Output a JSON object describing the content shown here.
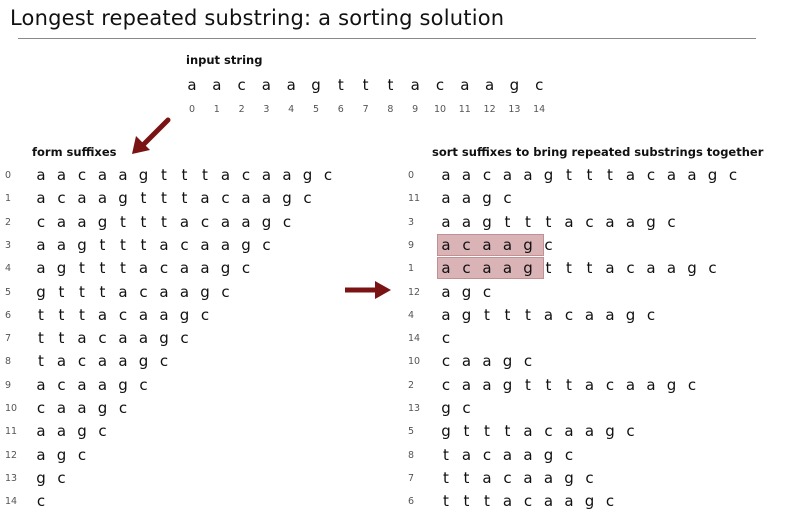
{
  "title": "Longest repeated substring:  a sorting solution",
  "input": {
    "label": "input string",
    "chars": [
      "a",
      "a",
      "c",
      "a",
      "a",
      "g",
      "t",
      "t",
      "t",
      "a",
      "c",
      "a",
      "a",
      "g",
      "c"
    ],
    "indices": [
      "0",
      "1",
      "2",
      "3",
      "4",
      "5",
      "6",
      "7",
      "8",
      "9",
      "10",
      "11",
      "12",
      "13",
      "14"
    ]
  },
  "left": {
    "label": "form suffixes",
    "rows": [
      {
        "n": "0",
        "s": "aacaagtttacaagc"
      },
      {
        "n": "1",
        "s": "acaagtttacaagc"
      },
      {
        "n": "2",
        "s": "caagtttacaagc"
      },
      {
        "n": "3",
        "s": "aagtttacaagc"
      },
      {
        "n": "4",
        "s": "agtttacaagc"
      },
      {
        "n": "5",
        "s": "gtttacaagc"
      },
      {
        "n": "6",
        "s": "tttacaagc"
      },
      {
        "n": "7",
        "s": "ttacaagc"
      },
      {
        "n": "8",
        "s": "tacaagc"
      },
      {
        "n": "9",
        "s": "acaagc"
      },
      {
        "n": "10",
        "s": "caagc"
      },
      {
        "n": "11",
        "s": "aagc"
      },
      {
        "n": "12",
        "s": "agc"
      },
      {
        "n": "13",
        "s": "gc"
      },
      {
        "n": "14",
        "s": "c"
      }
    ]
  },
  "right": {
    "label": "sort suffixes to bring repeated substrings together",
    "rows": [
      {
        "n": "0",
        "s": "aacaagtttacaagc"
      },
      {
        "n": "11",
        "s": "aagc"
      },
      {
        "n": "3",
        "s": "aagtttacaagc"
      },
      {
        "n": "9",
        "s": "acaagc",
        "highlight": 5
      },
      {
        "n": "1",
        "s": "acaagtttacaagc",
        "highlight": 5
      },
      {
        "n": "12",
        "s": "agc"
      },
      {
        "n": "4",
        "s": "agtttacaagc"
      },
      {
        "n": "14",
        "s": "c"
      },
      {
        "n": "10",
        "s": "caagc"
      },
      {
        "n": "2",
        "s": "caagtttacaagc"
      },
      {
        "n": "13",
        "s": "gc"
      },
      {
        "n": "5",
        "s": "gtttacaagc"
      },
      {
        "n": "8",
        "s": "tacaagc"
      },
      {
        "n": "7",
        "s": "ttacaagc"
      },
      {
        "n": "6",
        "s": "tttacaagc"
      }
    ]
  },
  "colors": {
    "arrow": "#7a1414",
    "highlight": "#d9b3b5"
  }
}
